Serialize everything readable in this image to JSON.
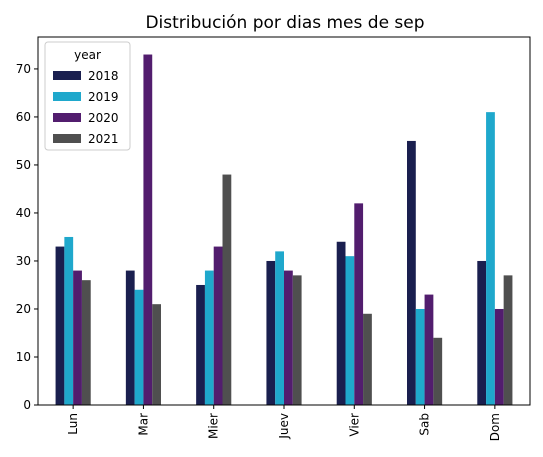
{
  "chart_data": {
    "type": "bar",
    "title": "Distribución por dias mes de sep",
    "xlabel": "",
    "ylabel": "",
    "categories": [
      "Lun",
      "Mar",
      "Mier",
      "Juev",
      "Vier",
      "Sab",
      "Dom"
    ],
    "series": [
      {
        "name": "2018",
        "color": "#1a1f4f",
        "values": [
          33,
          28,
          25,
          30,
          34,
          55,
          30
        ]
      },
      {
        "name": "2019",
        "color": "#1fa8cc",
        "values": [
          35,
          24,
          28,
          32,
          31,
          20,
          61
        ]
      },
      {
        "name": "2020",
        "color": "#521d6e",
        "values": [
          28,
          73,
          33,
          28,
          42,
          23,
          20
        ]
      },
      {
        "name": "2021",
        "color": "#4f4f4f",
        "values": [
          26,
          21,
          48,
          27,
          19,
          14,
          27
        ]
      }
    ],
    "ylim": [
      0,
      76.65
    ],
    "yticks": [
      0,
      10,
      20,
      30,
      40,
      50,
      60,
      70
    ],
    "legend": {
      "title": "year",
      "position": "top-left"
    },
    "grid": false
  }
}
